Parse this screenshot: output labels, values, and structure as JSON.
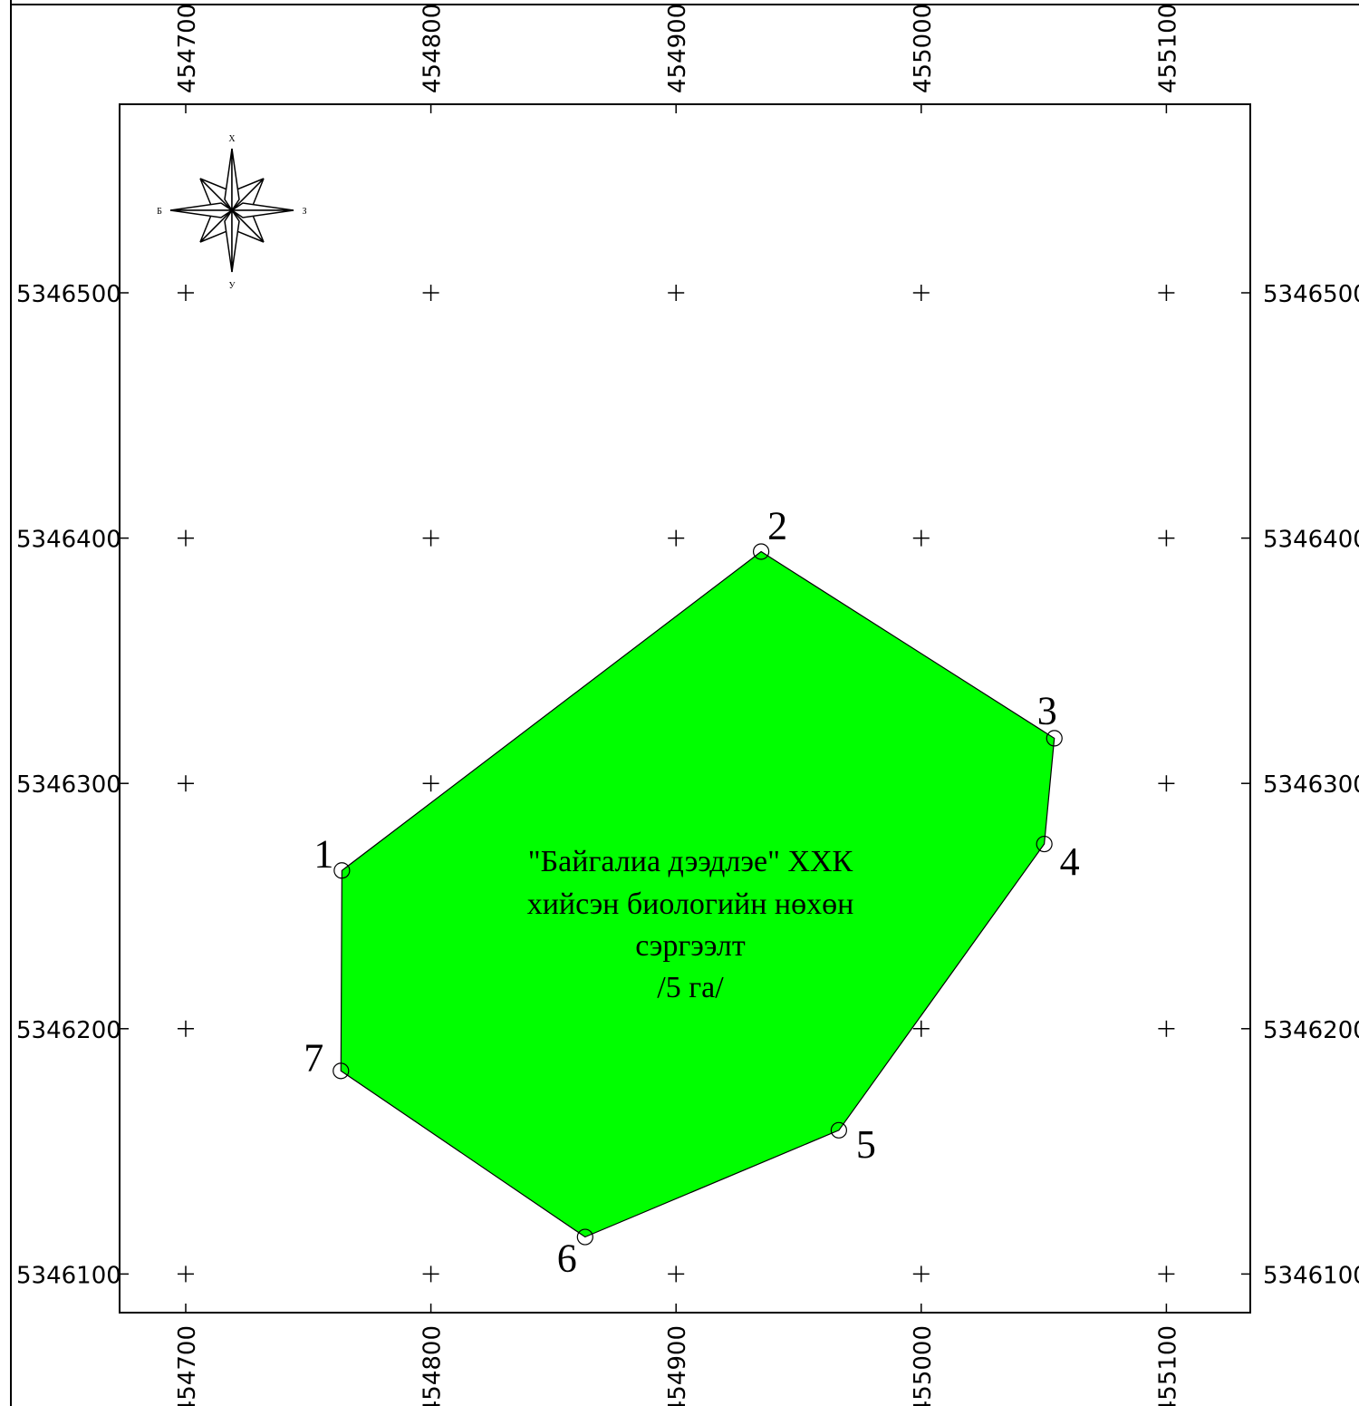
{
  "map": {
    "x_ticks": [
      "454700",
      "454800",
      "454900",
      "455000",
      "455100"
    ],
    "y_ticks": [
      "5346500",
      "5346400",
      "5346300",
      "5346200",
      "5346100"
    ],
    "x_values": [
      454700,
      454800,
      454900,
      455000,
      455100
    ],
    "y_values": [
      5346500,
      5346400,
      5346300,
      5346200,
      5346100
    ],
    "area": {
      "fill_color": "#00ff00",
      "label_lines": [
        "\"Байгалиа дээдлэе\" ХХК",
        "хийсэн биологийн нөхөн",
        "сэргээлт",
        "/5 га/"
      ]
    },
    "vertices": [
      {
        "label": "1",
        "x": 454763.7,
        "y": 5346264.5
      },
      {
        "label": "2",
        "x": 454934.7,
        "y": 5346394.5
      },
      {
        "label": "3",
        "x": 455054.3,
        "y": 5346318.4
      },
      {
        "label": "4",
        "x": 455050.2,
        "y": 5346275.3
      },
      {
        "label": "5",
        "x": 454966.4,
        "y": 5346158.6
      },
      {
        "label": "6",
        "x": 454862.9,
        "y": 5346115.1
      },
      {
        "label": "7",
        "x": 454763.3,
        "y": 5346182.8
      }
    ],
    "compass": {
      "north": "Х",
      "south": "У",
      "west": "Б",
      "east": "З"
    }
  }
}
